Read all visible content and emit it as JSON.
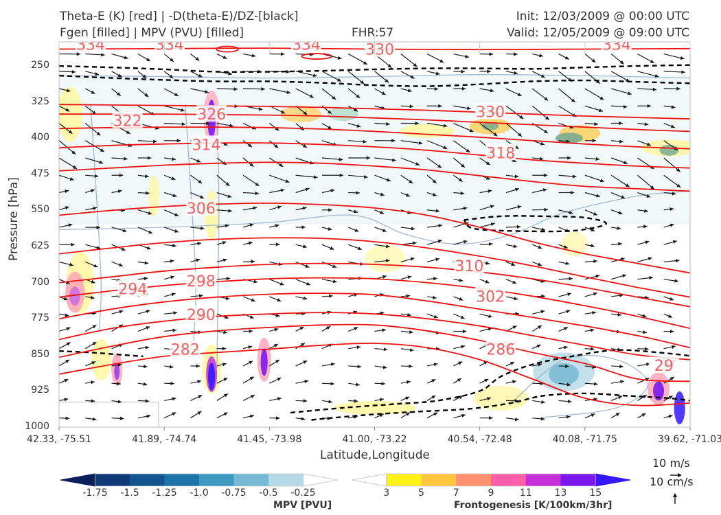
{
  "header": {
    "line1_left": "Theta-E (K) [red] | -D(theta-E)/DZ-[black]",
    "line2_left": "Fgen [filled] | MPV (PVU) [filled]",
    "line2_center": "FHR:57",
    "line1_right": "Init: 12/03/2009 @ 00:00 UTC",
    "line2_right": "Valid: 12/05/2009 @ 09:00 UTC"
  },
  "colors": {
    "theta_e": "#ee1111",
    "label": "#f06060",
    "dtheta_dz": "#000000",
    "mpv_contour": "#8fa7c8",
    "vectors": "#1a1a1a"
  },
  "chart_data": {
    "type": "cross-section",
    "title": "Theta-E (K) [red] | -D(theta-E)/DZ-[black]",
    "xlabel": "Latitude,Longitude",
    "ylabel": "Pressure [hPa]",
    "x_ticks": [
      "42.33, -75.51",
      "41.89, -74.74",
      "41.45, -73.98",
      "41.00, -73.22",
      "40.54, -72.48",
      "40.08, -71.75",
      "39.62, -71.03"
    ],
    "y_ticks": [
      250,
      325,
      400,
      475,
      550,
      625,
      700,
      775,
      850,
      925,
      1000
    ],
    "ylim": [
      1000,
      200
    ],
    "y_scale": "linear-inverted",
    "theta_e_contours": [
      {
        "value": 282,
        "points": [
          [
            0,
            890
          ],
          [
            0.5,
            870
          ],
          [
            1,
            853
          ],
          [
            1.5,
            845
          ],
          [
            2,
            838
          ],
          [
            2.5,
            830
          ],
          [
            3,
            826
          ],
          [
            3.5,
            835
          ],
          [
            4,
            860
          ],
          [
            4.5,
            900
          ],
          [
            5,
            940
          ],
          [
            5.5,
            955
          ],
          [
            6,
            950
          ]
        ]
      },
      {
        "value": 286,
        "points": [
          [
            0,
            855
          ],
          [
            0.5,
            832
          ],
          [
            1,
            812
          ],
          [
            1.5,
            800
          ],
          [
            2,
            793
          ],
          [
            2.5,
            788
          ],
          [
            3,
            788
          ],
          [
            3.5,
            800
          ],
          [
            4,
            820
          ],
          [
            4.5,
            845
          ],
          [
            5,
            868
          ],
          [
            5.5,
            900
          ],
          [
            6,
            905
          ]
        ]
      },
      {
        "value": 290,
        "points": [
          [
            0,
            818
          ],
          [
            0.5,
            795
          ],
          [
            1,
            780
          ],
          [
            1.5,
            770
          ],
          [
            2,
            765
          ],
          [
            2.5,
            762
          ],
          [
            3,
            765
          ],
          [
            3.5,
            775
          ],
          [
            4,
            790
          ],
          [
            4.5,
            810
          ],
          [
            5,
            830
          ],
          [
            5.5,
            850
          ],
          [
            6,
            860
          ]
        ]
      },
      {
        "value": 294,
        "points": [
          [
            0,
            775
          ],
          [
            0.5,
            755
          ],
          [
            1,
            740
          ],
          [
            1.5,
            730
          ],
          [
            2,
            724
          ],
          [
            2.5,
            722
          ],
          [
            3,
            725
          ],
          [
            3.5,
            738
          ],
          [
            4,
            755
          ],
          [
            4.5,
            772
          ],
          [
            5,
            790
          ],
          [
            5.5,
            810
          ],
          [
            6,
            835
          ]
        ]
      },
      {
        "value": 298,
        "points": [
          [
            0,
            730
          ],
          [
            0.5,
            717
          ],
          [
            1,
            706
          ],
          [
            1.5,
            698
          ],
          [
            2,
            692
          ],
          [
            2.5,
            690
          ],
          [
            3,
            692
          ],
          [
            3.5,
            700
          ],
          [
            4,
            712
          ],
          [
            4.5,
            728
          ],
          [
            5,
            748
          ],
          [
            5.5,
            770
          ],
          [
            6,
            795
          ]
        ]
      },
      {
        "value": 302,
        "points": [
          [
            0,
            700
          ],
          [
            0.5,
            688
          ],
          [
            1,
            676
          ],
          [
            1.5,
            668
          ],
          [
            2,
            662
          ],
          [
            2.5,
            660
          ],
          [
            3,
            662
          ],
          [
            3.5,
            668
          ],
          [
            4,
            678
          ],
          [
            4.5,
            692
          ],
          [
            5,
            710
          ],
          [
            5.5,
            730
          ],
          [
            6,
            750
          ]
        ]
      },
      {
        "value": 306,
        "points": [
          [
            0,
            640
          ],
          [
            0.5,
            628
          ],
          [
            1,
            617
          ],
          [
            1.5,
            610
          ],
          [
            2,
            607
          ],
          [
            2.5,
            608
          ],
          [
            3,
            615
          ],
          [
            3.5,
            628
          ],
          [
            4,
            645
          ],
          [
            4.5,
            665
          ],
          [
            5,
            688
          ],
          [
            5.5,
            710
          ],
          [
            6,
            730
          ]
        ]
      },
      {
        "value": 310,
        "points": [
          [
            0,
            560
          ],
          [
            0.5,
            550
          ],
          [
            1,
            542
          ],
          [
            1.5,
            537
          ],
          [
            2,
            535
          ],
          [
            2.5,
            538
          ],
          [
            3,
            545
          ],
          [
            3.5,
            560
          ],
          [
            4,
            585
          ],
          [
            4.5,
            615
          ],
          [
            5,
            640
          ],
          [
            5.5,
            660
          ],
          [
            6,
            680
          ]
        ]
      },
      {
        "value": 314,
        "points": [
          [
            0,
            468
          ],
          [
            0.5,
            462
          ],
          [
            1,
            456
          ],
          [
            1.5,
            452
          ],
          [
            2,
            450
          ],
          [
            2.5,
            452
          ],
          [
            3,
            458
          ],
          [
            3.5,
            466
          ],
          [
            4,
            478
          ],
          [
            4.5,
            490
          ],
          [
            5,
            500
          ],
          [
            5.5,
            505
          ],
          [
            6,
            510
          ]
        ]
      },
      {
        "value": 318,
        "points": [
          [
            0,
            420
          ],
          [
            0.5,
            415
          ],
          [
            1,
            412
          ],
          [
            1.5,
            410
          ],
          [
            2,
            410
          ],
          [
            2.5,
            413
          ],
          [
            3,
            418
          ],
          [
            3.5,
            425
          ],
          [
            4,
            435
          ],
          [
            4.5,
            445
          ],
          [
            5,
            452
          ],
          [
            5.5,
            458
          ],
          [
            6,
            462
          ]
        ]
      },
      {
        "value": 322,
        "points": [
          [
            0,
            380
          ],
          [
            0.5,
            378
          ],
          [
            1,
            377
          ],
          [
            1.5,
            377
          ],
          [
            2,
            378
          ],
          [
            2.5,
            381
          ],
          [
            3,
            386
          ],
          [
            3.5,
            392
          ],
          [
            4,
            398
          ],
          [
            4.5,
            405
          ],
          [
            5,
            412
          ],
          [
            5.5,
            418
          ],
          [
            6,
            422
          ]
        ]
      },
      {
        "value": 326,
        "points": [
          [
            0,
            350
          ],
          [
            0.5,
            350
          ],
          [
            1,
            350
          ],
          [
            1.5,
            351
          ],
          [
            2,
            352
          ],
          [
            2.5,
            354
          ],
          [
            3,
            358
          ],
          [
            3.5,
            362
          ],
          [
            4,
            367
          ],
          [
            4.5,
            372
          ],
          [
            5,
            377
          ],
          [
            5.5,
            382
          ],
          [
            6,
            386
          ]
        ]
      },
      {
        "value": 330,
        "points": [
          [
            0,
            330
          ],
          [
            0.5,
            331
          ],
          [
            1,
            332
          ],
          [
            1.5,
            333
          ],
          [
            2,
            334
          ],
          [
            2.5,
            336
          ],
          [
            3,
            339
          ],
          [
            3.5,
            342
          ],
          [
            4,
            346
          ],
          [
            4.5,
            350
          ],
          [
            5,
            354
          ],
          [
            5.5,
            357
          ],
          [
            6,
            360
          ]
        ]
      },
      {
        "value": 334,
        "points": [
          [
            0,
            215
          ],
          [
            1,
            214
          ],
          [
            2,
            213
          ],
          [
            3,
            215
          ],
          [
            4,
            216
          ],
          [
            5,
            215
          ],
          [
            6,
            214
          ]
        ]
      }
    ],
    "theta_e_labels": [
      {
        "text": "334",
        "x": 0.3,
        "p": 205
      },
      {
        "text": "334",
        "x": 1.05,
        "p": 205
      },
      {
        "text": "334",
        "x": 2.35,
        "p": 205
      },
      {
        "text": "330",
        "x": 3.05,
        "p": 215
      },
      {
        "text": "334",
        "x": 5.3,
        "p": 205
      },
      {
        "text": "330",
        "x": 4.1,
        "p": 345
      },
      {
        "text": "322",
        "x": 0.65,
        "p": 363
      },
      {
        "text": "326",
        "x": 1.45,
        "p": 350
      },
      {
        "text": "314",
        "x": 1.4,
        "p": 413
      },
      {
        "text": "318",
        "x": 4.2,
        "p": 430
      },
      {
        "text": "306",
        "x": 1.35,
        "p": 545
      },
      {
        "text": "310",
        "x": 3.9,
        "p": 665
      },
      {
        "text": "298",
        "x": 1.35,
        "p": 696
      },
      {
        "text": "294",
        "x": 0.7,
        "p": 713
      },
      {
        "text": "302",
        "x": 4.1,
        "p": 728
      },
      {
        "text": "290",
        "x": 1.35,
        "p": 766
      },
      {
        "text": "286",
        "x": 4.2,
        "p": 838
      },
      {
        "text": "282",
        "x": 1.2,
        "p": 838
      },
      {
        "text": "29",
        "x": 5.75,
        "p": 872
      }
    ],
    "dtheta_dz_contours": [
      {
        "points": [
          [
            0,
            250
          ],
          [
            0.5,
            253
          ],
          [
            1,
            257
          ],
          [
            1.5,
            262
          ],
          [
            2,
            262
          ],
          [
            2.5,
            260
          ],
          [
            3,
            257
          ],
          [
            3.5,
            255
          ],
          [
            4,
            255
          ],
          [
            4.5,
            256
          ],
          [
            5,
            253
          ],
          [
            5.5,
            250
          ],
          [
            6,
            248
          ]
        ]
      },
      {
        "points": [
          [
            0,
            270
          ],
          [
            0.5,
            275
          ],
          [
            1,
            279
          ],
          [
            1.5,
            282
          ],
          [
            2,
            282
          ],
          [
            2.5,
            285
          ],
          [
            3,
            290
          ],
          [
            3.5,
            292
          ],
          [
            4,
            288
          ],
          [
            4.5,
            282
          ],
          [
            5,
            280
          ],
          [
            5.5,
            283
          ],
          [
            6,
            286
          ]
        ]
      },
      {
        "points": [
          [
            0,
            842
          ],
          [
            0.3,
            845
          ],
          [
            0.6,
            850
          ],
          [
            0.8,
            853
          ]
        ]
      },
      {
        "points": [
          [
            3.85,
            570
          ],
          [
            4.2,
            562
          ],
          [
            4.6,
            562
          ],
          [
            5,
            565
          ],
          [
            5.2,
            578
          ],
          [
            4.9,
            592
          ],
          [
            4.4,
            593
          ],
          [
            3.95,
            588
          ],
          [
            3.85,
            570
          ]
        ]
      },
      {
        "points": [
          [
            2.2,
            970
          ],
          [
            2.7,
            960
          ],
          [
            3.2,
            952
          ],
          [
            3.6,
            945
          ],
          [
            4.0,
            925
          ],
          [
            4.2,
            895
          ],
          [
            4.5,
            870
          ],
          [
            4.9,
            852
          ],
          [
            5.3,
            840
          ],
          [
            5.7,
            845
          ],
          [
            6,
            852
          ]
        ]
      },
      {
        "points": [
          [
            2.4,
            985
          ],
          [
            2.9,
            975
          ],
          [
            3.4,
            968
          ],
          [
            3.9,
            962
          ],
          [
            4.3,
            950
          ],
          [
            4.6,
            935
          ],
          [
            5,
            930
          ],
          [
            5.4,
            935
          ],
          [
            5.8,
            940
          ],
          [
            6,
            945
          ]
        ]
      }
    ],
    "colorbar_mpv": {
      "label": "MPV [PVU]",
      "ticks": [
        "-1.75",
        "-1.5",
        "-1.25",
        "-1.0",
        "-0.75",
        "-0.5",
        "-0.25"
      ],
      "colors": [
        "#0b1f5c",
        "#0e3a78",
        "#13548f",
        "#1d73a8",
        "#3f9ac1",
        "#77b8d4",
        "#b5d9e6",
        "#ffffff"
      ]
    },
    "colorbar_fgen": {
      "label": "Frontogenesis [K/100km/3hr]",
      "ticks": [
        "3",
        "5",
        "7",
        "9",
        "11",
        "13",
        "15"
      ],
      "colors": [
        "#ffffff",
        "#fff016",
        "#ffc740",
        "#ff9070",
        "#ff5ea8",
        "#c530d8",
        "#7a18f0",
        "#3518ff"
      ]
    },
    "vector_key": {
      "horizontal": "10 m/s",
      "vertical": "10 cm/s"
    }
  }
}
